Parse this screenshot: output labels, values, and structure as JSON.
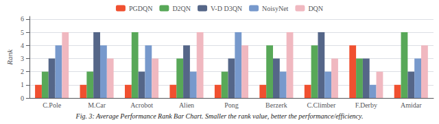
{
  "chart_data": {
    "type": "bar",
    "title": "Fig. 3: Average Performance Rank Bar Chart. Smaller the rank value, better the performance/efficiency.",
    "ylabel": "Rank",
    "categories": [
      "C.Pole",
      "M.Car",
      "Acrobot",
      "Alien",
      "Pong",
      "Berzerk",
      "C.Climber",
      "F.Derby",
      "Amidar"
    ],
    "series": [
      {
        "name": "PGDQN",
        "color": "#F05030",
        "values": [
          1,
          1,
          1,
          1,
          1,
          1,
          1,
          4,
          1
        ]
      },
      {
        "name": "D2QN",
        "color": "#58A858",
        "values": [
          2,
          2,
          5,
          3,
          2,
          4,
          4,
          3,
          5
        ]
      },
      {
        "name": "V-D D3QN",
        "color": "#556688",
        "values": [
          3,
          5,
          2,
          4,
          3,
          3,
          5,
          3,
          2
        ]
      },
      {
        "name": "NoisyNet",
        "color": "#7799CC",
        "values": [
          4,
          4,
          4,
          2,
          5,
          2,
          2,
          1,
          3
        ]
      },
      {
        "name": "DQN",
        "color": "#F0B8C0",
        "values": [
          5,
          3,
          3,
          5,
          4,
          5,
          3,
          2,
          4
        ]
      }
    ],
    "ylim": [
      0,
      6.2
    ],
    "yticks": [
      0,
      1,
      2,
      3,
      4,
      5,
      6
    ],
    "grid": true,
    "legend": "top"
  }
}
